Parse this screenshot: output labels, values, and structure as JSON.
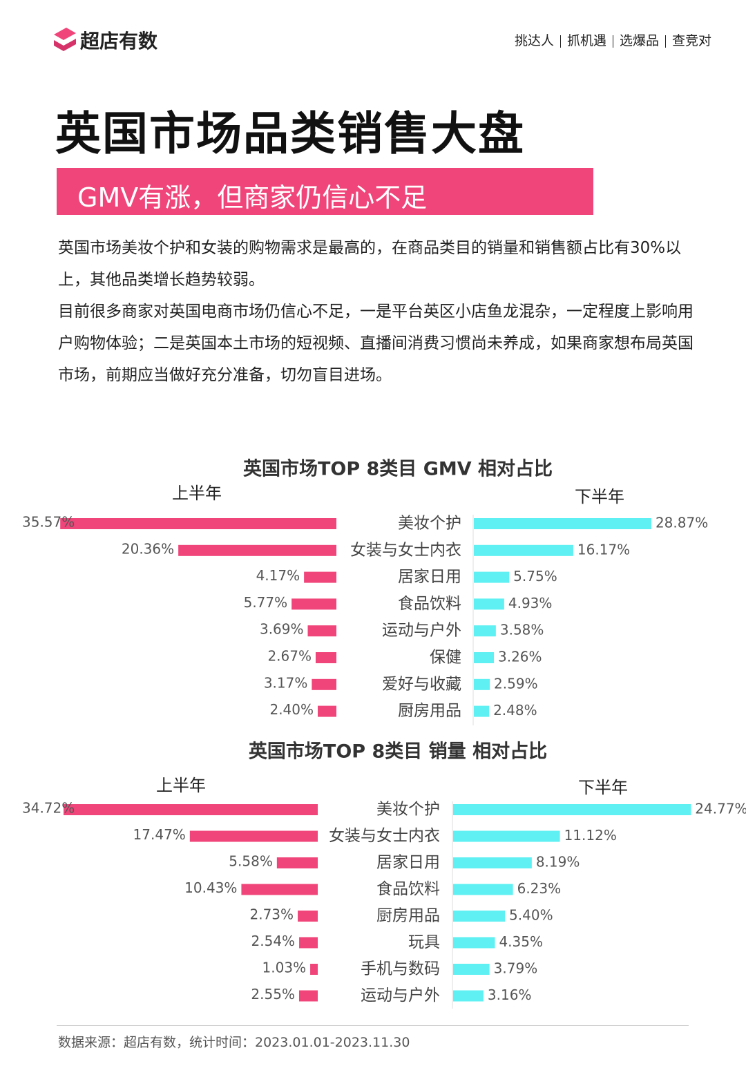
{
  "header": {
    "brand": "超店有数",
    "nav": [
      "挑达人",
      "抓机遇",
      "选爆品",
      "查竞对"
    ]
  },
  "title": "英国市场品类销售大盘",
  "subtitle": "GMV有涨，但商家仍信心不足",
  "paragraphs": [
    "英国市场美妆个护和女装的购物需求是最高的，在商品类目的销量和销售额占比有30%以上，其他品类增长趋势较弱。",
    "目前很多商家对英国电商市场仍信心不足，一是平台英区小店鱼龙混杂，一定程度上影响用户购物体验；二是英国本土市场的短视频、直播间消费习惯尚未养成，如果商家想布局英国市场，前期应当做好充分准备，切勿盲目进场。"
  ],
  "chart_data": [
    {
      "type": "butterfly",
      "title": "英国市场TOP 8类目 GMV 相对占比",
      "categories": [
        "美妆个护",
        "女装与女士内衣",
        "居家日用",
        "食品饮料",
        "运动与户外",
        "保健",
        "爱好与收藏",
        "厨房用品"
      ],
      "series": [
        {
          "name": "上半年",
          "color": "#f0457a",
          "values": [
            35.57,
            20.36,
            4.17,
            5.77,
            3.69,
            2.67,
            3.17,
            2.4
          ],
          "value_labels": [
            "35.57%",
            "20.36%",
            "4.17%",
            "5.77%",
            "3.69%",
            "2.67%",
            "3.17%",
            "2.40%"
          ]
        },
        {
          "name": "下半年",
          "color": "#5ef0f2",
          "values": [
            28.87,
            16.17,
            5.75,
            4.93,
            3.58,
            3.26,
            2.59,
            2.48
          ],
          "value_labels": [
            "28.87%",
            "16.17%",
            "5.75%",
            "4.93%",
            "3.58%",
            "3.26%",
            "2.59%",
            "2.48%"
          ]
        }
      ]
    },
    {
      "type": "butterfly",
      "title": "英国市场TOP 8类目 销量 相对占比",
      "categories": [
        "美妆个护",
        "女装与女士内衣",
        "居家日用",
        "食品饮料",
        "厨房用品",
        "玩具",
        "手机与数码",
        "运动与户外"
      ],
      "series": [
        {
          "name": "上半年",
          "color": "#f0457a",
          "values": [
            34.72,
            17.47,
            5.58,
            10.43,
            2.73,
            2.54,
            1.03,
            2.55
          ],
          "value_labels": [
            "34.72%",
            "17.47%",
            "5.58%",
            "10.43%",
            "2.73%",
            "2.54%",
            "1.03%",
            "2.55%"
          ]
        },
        {
          "name": "下半年",
          "color": "#5ef0f2",
          "values": [
            24.77,
            11.12,
            8.19,
            6.23,
            5.4,
            4.35,
            3.79,
            3.16
          ],
          "value_labels": [
            "24.77%",
            "11.12%",
            "8.19%",
            "6.23%",
            "5.40%",
            "4.35%",
            "3.79%",
            "3.16%"
          ]
        }
      ]
    }
  ],
  "footer": "数据来源：超店有数，统计时间：2023.01.01-2023.11.30"
}
